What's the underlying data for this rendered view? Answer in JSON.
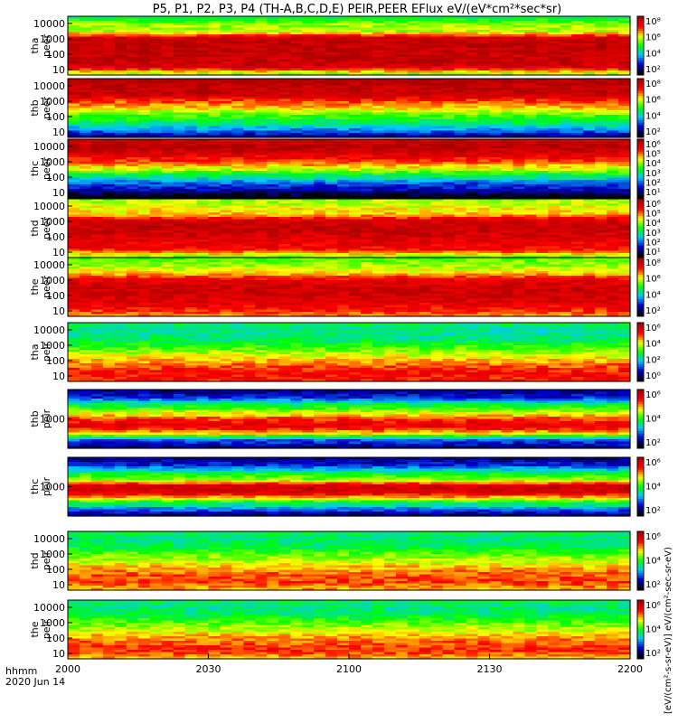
{
  "chart_data": {
    "type": "heatmap",
    "title": "P5, P1, P2, P3, P4 (TH-A,B,C,D,E) PEIR,PEER EFlux eV/(eV*cm²*sec*sr)",
    "x_label_lines": [
      "hhmm",
      "2020 Jun 14"
    ],
    "x_ticks": [
      "2000",
      "2030",
      "2100",
      "2130",
      "2200"
    ],
    "colorbar_label": "[eV/(cm²-s-sr-eV)] eV/(cm²-sec-sr-eV)",
    "colormap": [
      "#000000",
      "#0000c8",
      "#00c8ff",
      "#00ff00",
      "#ffff00",
      "#ff0000",
      "#aa0000"
    ],
    "panels": [
      {
        "label": [
          "tha",
          "peer"
        ],
        "y_ticks": [
          "10000",
          "1000",
          "100",
          "10"
        ],
        "cb_ticks": [
          "10⁸",
          "10⁶",
          "10⁴",
          "10²"
        ],
        "profile": [
          0.45,
          0.6,
          0.62,
          0.95,
          0.95,
          0.95,
          0.95,
          0.92,
          0.6
        ]
      },
      {
        "label": [
          "thb",
          "peer"
        ],
        "y_ticks": [
          "10000",
          "1000",
          "100",
          "10"
        ],
        "cb_ticks": [
          "10⁸",
          "10⁶",
          "10⁴",
          "10²"
        ],
        "profile": [
          1.0,
          0.95,
          0.95,
          0.8,
          0.7,
          0.55,
          0.45,
          0.3,
          0.12
        ]
      },
      {
        "label": [
          "thc",
          "peer"
        ],
        "y_ticks": [
          "10000",
          "1000",
          "100",
          "10"
        ],
        "cb_ticks": [
          "10⁶",
          "10⁵",
          "10⁴",
          "10³",
          "10²",
          "10¹"
        ],
        "profile": [
          0.95,
          0.98,
          0.9,
          0.8,
          0.65,
          0.45,
          0.25,
          0.15,
          0.0
        ]
      },
      {
        "label": [
          "thd",
          "peer"
        ],
        "y_ticks": [
          "10000",
          "1000",
          "100",
          "10"
        ],
        "cb_ticks": [
          "10⁶",
          "10⁵",
          "10⁴",
          "10³",
          "10²",
          "10¹"
        ],
        "profile": [
          0.6,
          0.65,
          0.7,
          0.92,
          0.95,
          0.92,
          0.88,
          0.85,
          0.6
        ]
      },
      {
        "label": [
          "the",
          "peer"
        ],
        "y_ticks": [
          "10000",
          "1000",
          "100",
          "10"
        ],
        "cb_ticks": [
          "10⁸",
          "10⁶",
          "10⁴",
          "10²"
        ],
        "profile": [
          0.55,
          0.6,
          0.68,
          0.88,
          0.93,
          0.93,
          0.9,
          0.85,
          0.75
        ]
      },
      {
        "label": [
          "tha",
          "peir"
        ],
        "y_ticks": [
          "10000",
          "1000",
          "100",
          "10"
        ],
        "cb_ticks": [
          "10⁶",
          "10⁴",
          "10²",
          "10⁰"
        ],
        "profile": [
          0.45,
          0.4,
          0.42,
          0.5,
          0.6,
          0.7,
          0.78,
          0.85,
          0.82
        ]
      },
      {
        "label": [
          "thb",
          "peir"
        ],
        "y_ticks": [
          "1000"
        ],
        "cb_ticks": [
          "10⁶",
          "10⁴",
          "10²"
        ],
        "profile": [
          0.1,
          0.2,
          0.45,
          0.62,
          0.8,
          0.9,
          0.7,
          0.25,
          0.1
        ]
      },
      {
        "label": [
          "thc",
          "peir"
        ],
        "y_ticks": [
          "1000"
        ],
        "cb_ticks": [
          "10⁶",
          "10⁴",
          "10²"
        ],
        "profile": [
          0.1,
          0.2,
          0.45,
          0.6,
          0.95,
          0.88,
          0.55,
          0.3,
          0.1
        ]
      },
      {
        "label": [
          "thd",
          "peir"
        ],
        "y_ticks": [
          "10000",
          "1000",
          "100",
          "10"
        ],
        "cb_ticks": [
          "10⁶",
          "10⁴",
          "10²"
        ],
        "profile": [
          0.45,
          0.42,
          0.45,
          0.55,
          0.62,
          0.72,
          0.78,
          0.8,
          0.72
        ]
      },
      {
        "label": [
          "the",
          "peir"
        ],
        "y_ticks": [
          "10000",
          "1000",
          "100",
          "10"
        ],
        "cb_ticks": [
          "10⁶",
          "10⁴",
          "10²"
        ],
        "profile": [
          0.45,
          0.42,
          0.45,
          0.55,
          0.62,
          0.72,
          0.78,
          0.82,
          0.72
        ]
      }
    ]
  }
}
